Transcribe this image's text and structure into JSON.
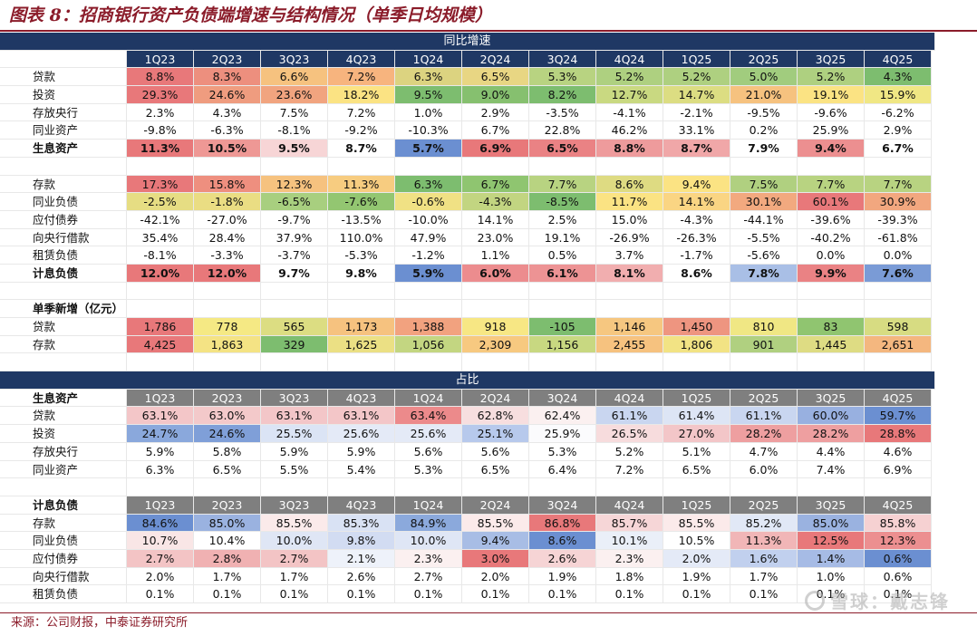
{
  "title": "图表 8：招商银行资产负债端增速与结构情况（单季日均规模）",
  "source": "来源：公司财报，中泰证券研究所",
  "watermark": "雪球：戴志锋",
  "quarters": [
    "1Q23",
    "2Q23",
    "3Q23",
    "4Q23",
    "1Q24",
    "2Q24",
    "3Q24",
    "4Q24",
    "1Q25",
    "2Q25",
    "3Q25",
    "4Q25"
  ],
  "sections": [
    {
      "type": "banner",
      "text": "同比增速"
    },
    {
      "type": "header",
      "style": "blue",
      "label": ""
    },
    {
      "label": "贷款",
      "values": [
        "8.8%",
        "8.3%",
        "6.6%",
        "7.2%",
        "6.3%",
        "6.5%",
        "5.3%",
        "5.2%",
        "5.2%",
        "5.0%",
        "5.2%",
        "4.3%"
      ],
      "colors": [
        "#e8787a",
        "#ed8f7e",
        "#f6c27f",
        "#f7b47e",
        "#dcd380",
        "#e8d683",
        "#b8d381",
        "#aed080",
        "#aed080",
        "#a1cc7e",
        "#aed080",
        "#7dbd6f"
      ]
    },
    {
      "label": "投资",
      "values": [
        "29.3%",
        "24.6%",
        "23.6%",
        "18.2%",
        "9.5%",
        "9.0%",
        "8.2%",
        "12.7%",
        "14.7%",
        "21.0%",
        "19.1%",
        "15.9%"
      ],
      "colors": [
        "#e8787a",
        "#ef9c7f",
        "#f1a47f",
        "#fbe383",
        "#7dbd6f",
        "#86c06f",
        "#7dbd6f",
        "#c9d981",
        "#dcdd82",
        "#f6c27f",
        "#fbe383",
        "#f0e784"
      ]
    },
    {
      "label": "存放央行",
      "values": [
        "2.3%",
        "4.3%",
        "7.5%",
        "7.2%",
        "1.0%",
        "2.9%",
        "-3.5%",
        "-4.1%",
        "-2.1%",
        "-9.5%",
        "-9.6%",
        "-6.2%"
      ],
      "colors": []
    },
    {
      "label": "同业资产",
      "values": [
        "-9.8%",
        "-6.3%",
        "-8.1%",
        "-9.2%",
        "-10.3%",
        "6.7%",
        "22.8%",
        "46.2%",
        "33.1%",
        "0.2%",
        "25.9%",
        "2.9%"
      ],
      "colors": []
    },
    {
      "label": "生息资产",
      "bold": true,
      "values": [
        "11.3%",
        "10.5%",
        "9.5%",
        "8.7%",
        "5.7%",
        "6.9%",
        "6.5%",
        "8.8%",
        "8.7%",
        "7.9%",
        "9.4%",
        "6.7%"
      ],
      "colors": [
        "#e8787a",
        "#ee9895",
        "#f7d5d6",
        "#ffffff",
        "#6b8fd1",
        "#e8787a",
        "#ea8284",
        "#ee9b9c",
        "#f0a7a8",
        "#ffffff",
        "#ec8f90",
        "#ffffff"
      ]
    },
    {
      "type": "empty"
    },
    {
      "label": "存款",
      "values": [
        "17.3%",
        "15.8%",
        "12.3%",
        "11.3%",
        "6.3%",
        "6.7%",
        "7.7%",
        "8.6%",
        "9.4%",
        "7.5%",
        "7.7%",
        "7.7%"
      ],
      "colors": [
        "#e8787a",
        "#ee8f7f",
        "#f6c27f",
        "#f7cc80",
        "#7dbd6f",
        "#8fc570",
        "#b8d381",
        "#dedb82",
        "#fbe383",
        "#b0d080",
        "#b8d381",
        "#b8d381"
      ]
    },
    {
      "label": "同业负债",
      "values": [
        "-2.5%",
        "-1.8%",
        "-6.5%",
        "-7.6%",
        "-0.6%",
        "-4.3%",
        "-8.5%",
        "11.7%",
        "14.1%",
        "30.1%",
        "60.1%",
        "30.9%"
      ],
      "colors": [
        "#e6dd83",
        "#eadd83",
        "#a8cf7f",
        "#93c671",
        "#f0e184",
        "#c2d581",
        "#7dbd6f",
        "#fbe383",
        "#fad583",
        "#f2a97f",
        "#e8787a",
        "#f2a77f"
      ]
    },
    {
      "label": "应付债券",
      "values": [
        "-42.1%",
        "-27.0%",
        "-9.7%",
        "-13.5%",
        "-10.0%",
        "14.1%",
        "2.5%",
        "15.0%",
        "-4.3%",
        "-44.1%",
        "-39.6%",
        "-39.3%"
      ],
      "colors": []
    },
    {
      "label": "向央行借款",
      "values": [
        "35.4%",
        "28.4%",
        "37.9%",
        "110.0%",
        "47.9%",
        "23.0%",
        "19.1%",
        "-26.9%",
        "-26.3%",
        "-5.5%",
        "-40.2%",
        "-61.8%"
      ],
      "colors": []
    },
    {
      "label": "租赁负债",
      "values": [
        "-8.1%",
        "-3.3%",
        "-3.7%",
        "-5.3%",
        "-1.2%",
        "1.1%",
        "0.5%",
        "3.7%",
        "-1.7%",
        "-5.6%",
        "0.0%",
        "0.0%"
      ],
      "colors": []
    },
    {
      "label": "计息负债",
      "bold": true,
      "values": [
        "12.0%",
        "12.0%",
        "9.7%",
        "9.8%",
        "5.9%",
        "6.0%",
        "6.1%",
        "8.1%",
        "8.6%",
        "7.8%",
        "9.9%",
        "7.6%"
      ],
      "colors": [
        "#e8787a",
        "#e8787a",
        "#ffffff",
        "#ffffff",
        "#6b8fd1",
        "#ec8c8e",
        "#ed9394",
        "#f1aeaf",
        "#ffffff",
        "#a9bfe6",
        "#ea8284",
        "#7a9bd6"
      ]
    },
    {
      "type": "empty"
    },
    {
      "label": "单季新增（亿元）",
      "section": true,
      "values": [
        "",
        "",
        "",
        "",
        "",
        "",
        "",
        "",
        "",
        "",
        "",
        ""
      ],
      "colors": []
    },
    {
      "label": "贷款",
      "values": [
        "1,786",
        "778",
        "565",
        "1,173",
        "1,388",
        "918",
        "-105",
        "1,146",
        "1,450",
        "810",
        "83",
        "598"
      ],
      "colors": [
        "#e8787a",
        "#f5e984",
        "#dcdd82",
        "#f6c27f",
        "#f2a27f",
        "#f7e784",
        "#7dbd6f",
        "#f6c780",
        "#ee9580",
        "#f0e784",
        "#90c570",
        "#d7dc82"
      ]
    },
    {
      "label": "存款",
      "values": [
        "4,425",
        "1,863",
        "329",
        "1,625",
        "1,056",
        "2,309",
        "1,156",
        "2,455",
        "1,806",
        "901",
        "1,445",
        "2,651"
      ],
      "colors": [
        "#e8787a",
        "#f4e384",
        "#7dbd6f",
        "#ebe084",
        "#c3d681",
        "#f7c980",
        "#c8d881",
        "#f6c27f",
        "#f2e384",
        "#b0d080",
        "#dedc83",
        "#f4b77f"
      ]
    },
    {
      "type": "empty"
    },
    {
      "type": "banner",
      "text": "占比"
    },
    {
      "type": "header",
      "style": "gray",
      "label": "生息资产"
    },
    {
      "label": "贷款",
      "values": [
        "63.1%",
        "63.0%",
        "63.1%",
        "63.1%",
        "63.4%",
        "62.8%",
        "62.4%",
        "61.1%",
        "61.4%",
        "61.1%",
        "60.0%",
        "59.7%"
      ],
      "colors": [
        "#f3c6c8",
        "#f3c9ca",
        "#f3c6c8",
        "#f3c6c8",
        "#ec8a8b",
        "#f7dedf",
        "#fbf0f0",
        "#c9d6f0",
        "#dde5f5",
        "#c9d6f0",
        "#98b0e0",
        "#6b8fd1"
      ]
    },
    {
      "label": "投资",
      "values": [
        "24.7%",
        "24.6%",
        "25.5%",
        "25.6%",
        "25.6%",
        "25.1%",
        "25.9%",
        "26.5%",
        "27.0%",
        "28.2%",
        "28.2%",
        "28.8%"
      ],
      "colors": [
        "#8aa8dc",
        "#7f9fd8",
        "#dbe4f5",
        "#e4eaf7",
        "#e4eaf7",
        "#b7c9ec",
        "#fbfbfd",
        "#f7dcdd",
        "#f3c6c8",
        "#ee9fa0",
        "#ee9fa0",
        "#e8787a"
      ]
    },
    {
      "label": "存放央行",
      "values": [
        "5.9%",
        "5.8%",
        "5.9%",
        "5.9%",
        "5.6%",
        "5.6%",
        "5.3%",
        "5.2%",
        "5.1%",
        "4.7%",
        "4.4%",
        "4.6%"
      ],
      "colors": []
    },
    {
      "label": "同业资产",
      "values": [
        "6.3%",
        "6.5%",
        "5.5%",
        "5.4%",
        "5.3%",
        "6.5%",
        "6.4%",
        "7.2%",
        "6.5%",
        "6.0%",
        "7.4%",
        "6.9%"
      ],
      "colors": []
    },
    {
      "type": "empty"
    },
    {
      "type": "header",
      "style": "gray",
      "label": "计息负债"
    },
    {
      "label": "存款",
      "values": [
        "84.6%",
        "85.0%",
        "85.5%",
        "85.3%",
        "84.9%",
        "85.5%",
        "86.8%",
        "85.7%",
        "85.5%",
        "85.2%",
        "85.0%",
        "85.8%"
      ],
      "colors": [
        "#6b8fd1",
        "#9ab2e0",
        "#fbeaea",
        "#d9e2f4",
        "#8ba9dc",
        "#fbeaea",
        "#e8787a",
        "#f6d6d7",
        "#fbeaea",
        "#e1e8f6",
        "#9ab2e0",
        "#f6d1d2"
      ]
    },
    {
      "label": "同业负债",
      "values": [
        "10.7%",
        "10.4%",
        "10.0%",
        "9.8%",
        "10.0%",
        "9.4%",
        "8.6%",
        "10.1%",
        "10.5%",
        "11.3%",
        "12.5%",
        "12.3%"
      ],
      "colors": [
        "#f9e6e6",
        "#ffffff",
        "#dfe6f5",
        "#d2dcf2",
        "#dfe6f5",
        "#a8bde5",
        "#6b8fd1",
        "#eaeff8",
        "#ffffff",
        "#f1b6b7",
        "#e8787a",
        "#ec8f90"
      ]
    },
    {
      "label": "应付债券",
      "values": [
        "2.7%",
        "2.8%",
        "2.7%",
        "2.1%",
        "2.3%",
        "3.0%",
        "2.6%",
        "2.3%",
        "2.0%",
        "1.6%",
        "1.4%",
        "0.6%"
      ],
      "colors": [
        "#f3c4c5",
        "#f0b1b2",
        "#f3c4c5",
        "#eef2fa",
        "#fbf0f0",
        "#e8787a",
        "#f6d4d5",
        "#fbf0f0",
        "#e4eaf7",
        "#c1d0ee",
        "#a6bbe5",
        "#6b8fd1"
      ]
    },
    {
      "label": "向央行借款",
      "values": [
        "2.0%",
        "1.7%",
        "1.7%",
        "2.6%",
        "2.7%",
        "2.0%",
        "1.9%",
        "1.8%",
        "1.9%",
        "1.7%",
        "1.0%",
        "0.6%"
      ],
      "colors": []
    },
    {
      "label": "租赁负债",
      "values": [
        "0.1%",
        "0.1%",
        "0.1%",
        "0.1%",
        "0.1%",
        "0.1%",
        "0.1%",
        "0.1%",
        "0.1%",
        "0.1%",
        "0.1%",
        "0.1%"
      ],
      "colors": []
    }
  ]
}
